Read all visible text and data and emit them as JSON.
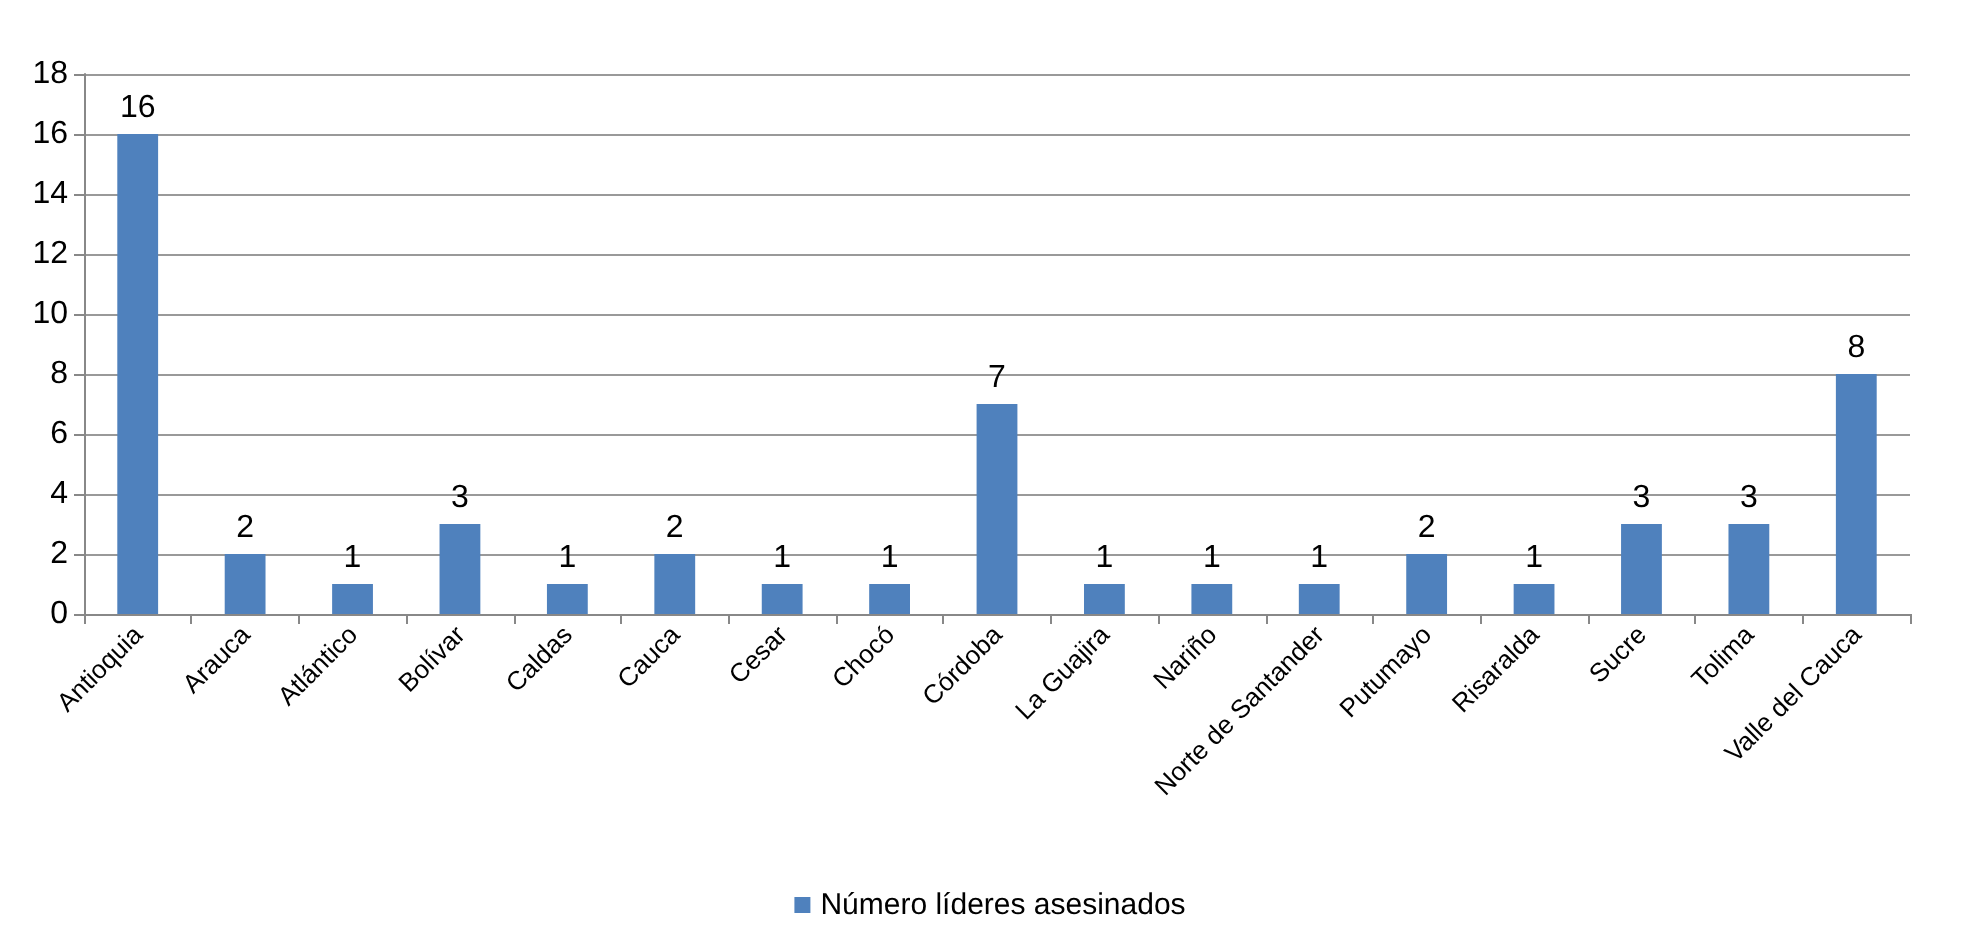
{
  "chart_data": {
    "type": "bar",
    "categories": [
      "Antioquia",
      "Arauca",
      "Atlántico",
      "Bolívar",
      "Caldas",
      "Cauca",
      "Cesar",
      "Chocó",
      "Córdoba",
      "La Guajira",
      "Nariño",
      "Norte de Santander",
      "Putumayo",
      "Risaralda",
      "Sucre",
      "Tolima",
      "Valle del Cauca"
    ],
    "series": [
      {
        "name": "Número líderes asesinados",
        "color": "#4f81bd",
        "values": [
          16,
          2,
          1,
          3,
          1,
          2,
          1,
          1,
          7,
          1,
          1,
          1,
          2,
          1,
          3,
          3,
          8
        ]
      }
    ],
    "ylim": [
      0,
      18
    ],
    "yticks": [
      0,
      2,
      4,
      6,
      8,
      10,
      12,
      14,
      16,
      18
    ],
    "grid": "y",
    "legend": "bottom",
    "data_labels": true
  }
}
